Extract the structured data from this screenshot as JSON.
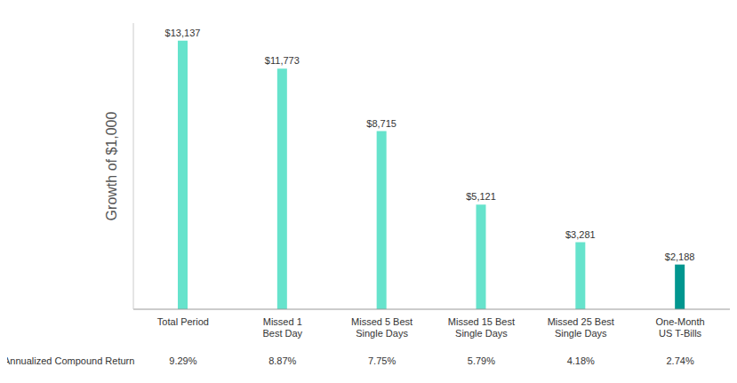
{
  "chart_data": {
    "type": "bar",
    "ylabel": "Growth of $1,000",
    "categories": [
      "Total Period",
      "Missed 1\nBest Day",
      "Missed 5 Best\nSingle Days",
      "Missed 15 Best\nSingle Days",
      "Missed 25 Best\nSingle Days",
      "One-Month\nUS T-Bills"
    ],
    "values": [
      13137,
      11773,
      8715,
      5121,
      3281,
      2188
    ],
    "value_labels": [
      "$13,137",
      "$11,773",
      "$8,715",
      "$5,121",
      "$3,281",
      "$2,188"
    ],
    "colors": [
      "#66e3cc",
      "#66e3cc",
      "#66e3cc",
      "#66e3cc",
      "#66e3cc",
      "#00968f"
    ],
    "ylim": [
      0,
      14000
    ],
    "tick_labels": "x",
    "data_labels": true,
    "grid": false,
    "table_row": {
      "label": "Annualized Compound Return",
      "cells": [
        "9.29%",
        "8.87%",
        "7.75%",
        "5.79%",
        "4.18%",
        "2.74%"
      ]
    }
  }
}
